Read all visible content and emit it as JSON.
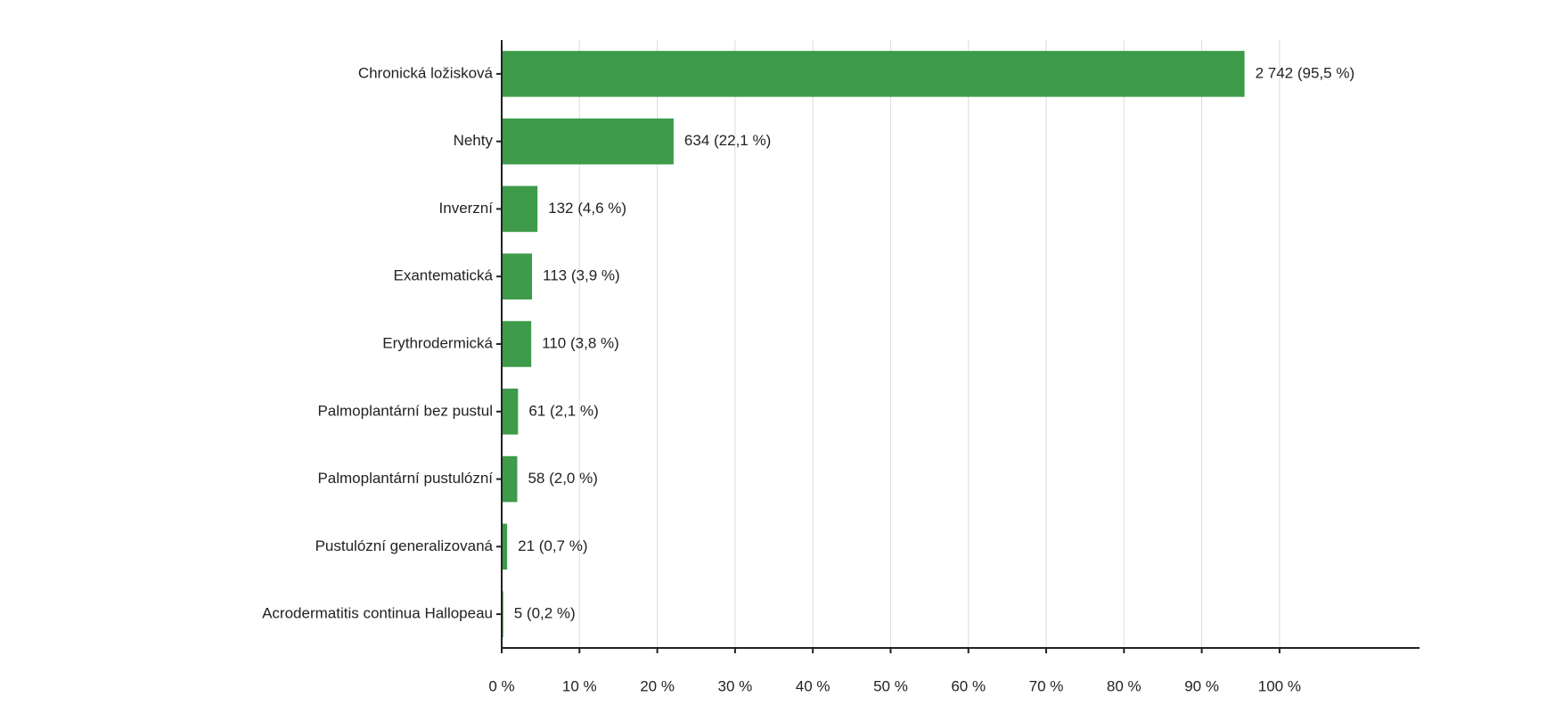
{
  "chart_data": {
    "type": "barh",
    "categories": [
      "Chronická ložisková",
      "Nehty",
      "Inverzní",
      "Exantematická",
      "Erythrodermická",
      "Palmoplantární bez pustul",
      "Palmoplantární pustulózní",
      "Pustulózní generalizovaná",
      "Acrodermatitis continua Hallopeau"
    ],
    "values": [
      95.5,
      22.1,
      4.6,
      3.9,
      3.8,
      2.1,
      2.0,
      0.7,
      0.2
    ],
    "value_labels": [
      "2 742 (95,5 %)",
      "634 (22,1 %)",
      "132 (4,6 %)",
      "113 (3,9 %)",
      "110 (3,8 %)",
      "61 (2,1 %)",
      "58 (2,0 %)",
      "21 (0,7 %)",
      "5 (0,2 %)"
    ],
    "color": "#3d9b4a",
    "xlim": [
      0,
      118
    ],
    "xticks": [
      {
        "value": 0,
        "label": "0 %"
      },
      {
        "value": 10,
        "label": "10 %"
      },
      {
        "value": 20,
        "label": "20 %"
      },
      {
        "value": 30,
        "label": "30 %"
      },
      {
        "value": 40,
        "label": "40 %"
      },
      {
        "value": 50,
        "label": "50 %"
      },
      {
        "value": 60,
        "label": "60 %"
      },
      {
        "value": 70,
        "label": "70 %"
      },
      {
        "value": 80,
        "label": "80 %"
      },
      {
        "value": 90,
        "label": "90 %"
      },
      {
        "value": 100,
        "label": "100 %"
      }
    ],
    "grid": true
  }
}
